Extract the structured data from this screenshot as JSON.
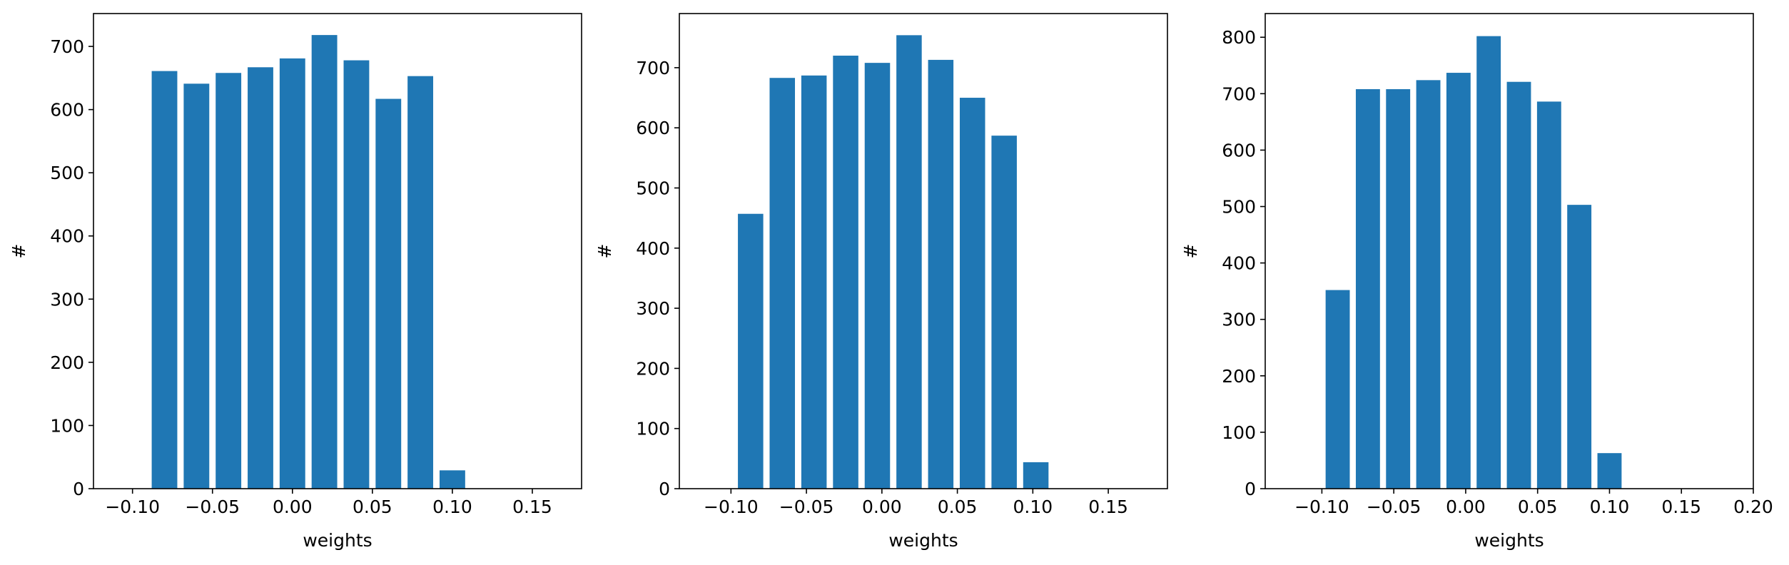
{
  "figure": {
    "panels": [
      {
        "id": "left"
      },
      {
        "id": "middle"
      },
      {
        "id": "right"
      }
    ]
  },
  "chart_data": [
    {
      "type": "bar",
      "title": "",
      "xlabel": "weights",
      "ylabel": "#",
      "bar_color": "#1f77b4",
      "xlim": [
        -0.1244,
        0.1808
      ],
      "ylim": [
        0,
        752
      ],
      "bar_width": 0.016,
      "xticks": [
        -0.1,
        -0.05,
        0.0,
        0.05,
        0.1,
        0.15
      ],
      "xtick_labels": [
        "−0.10",
        "−0.05",
        "0.00",
        "0.05",
        "0.10",
        "0.15"
      ],
      "yticks": [
        0,
        100,
        200,
        300,
        400,
        500,
        600,
        700
      ],
      "ytick_labels": [
        "0",
        "100",
        "200",
        "300",
        "400",
        "500",
        "600",
        "700"
      ],
      "x": [
        -0.08,
        -0.06,
        -0.04,
        -0.02,
        0.0,
        0.02,
        0.04,
        0.06,
        0.08,
        0.1
      ],
      "values": [
        661,
        641,
        658,
        667,
        681,
        718,
        678,
        617,
        653,
        29
      ]
    },
    {
      "type": "bar",
      "title": "",
      "xlabel": "weights",
      "ylabel": "#",
      "bar_color": "#1f77b4",
      "xlim": [
        -0.1342,
        0.1892
      ],
      "ylim": [
        0,
        790
      ],
      "bar_width": 0.0168,
      "xticks": [
        -0.1,
        -0.05,
        0.0,
        0.05,
        0.1,
        0.15
      ],
      "xtick_labels": [
        "−0.10",
        "−0.05",
        "0.00",
        "0.05",
        "0.10",
        "0.15"
      ],
      "yticks": [
        0,
        100,
        200,
        300,
        400,
        500,
        600,
        700
      ],
      "ytick_labels": [
        "0",
        "100",
        "200",
        "300",
        "400",
        "500",
        "600",
        "700"
      ],
      "x": [
        -0.087,
        -0.066,
        -0.045,
        -0.024,
        -0.003,
        0.018,
        0.039,
        0.06,
        0.081,
        0.102
      ],
      "values": [
        457,
        683,
        687,
        720,
        708,
        754,
        713,
        650,
        587,
        44
      ]
    },
    {
      "type": "bar",
      "title": "",
      "xlabel": "weights",
      "ylabel": "#",
      "bar_color": "#1f77b4",
      "xlim": [
        -0.1394,
        0.2
      ],
      "ylim": [
        0,
        842
      ],
      "bar_width": 0.0168,
      "xticks": [
        -0.1,
        -0.05,
        0.0,
        0.05,
        0.1,
        0.15,
        0.2
      ],
      "xtick_labels": [
        "−0.10",
        "−0.05",
        "0.00",
        "0.05",
        "0.10",
        "0.15",
        "0.20"
      ],
      "yticks": [
        0,
        100,
        200,
        300,
        400,
        500,
        600,
        700,
        800
      ],
      "ytick_labels": [
        "0",
        "100",
        "200",
        "300",
        "400",
        "500",
        "600",
        "700",
        "800"
      ],
      "x": [
        -0.089,
        -0.068,
        -0.047,
        -0.026,
        -0.005,
        0.016,
        0.037,
        0.058,
        0.079,
        0.1
      ],
      "values": [
        352,
        708,
        708,
        724,
        737,
        802,
        721,
        686,
        503,
        63
      ]
    }
  ]
}
